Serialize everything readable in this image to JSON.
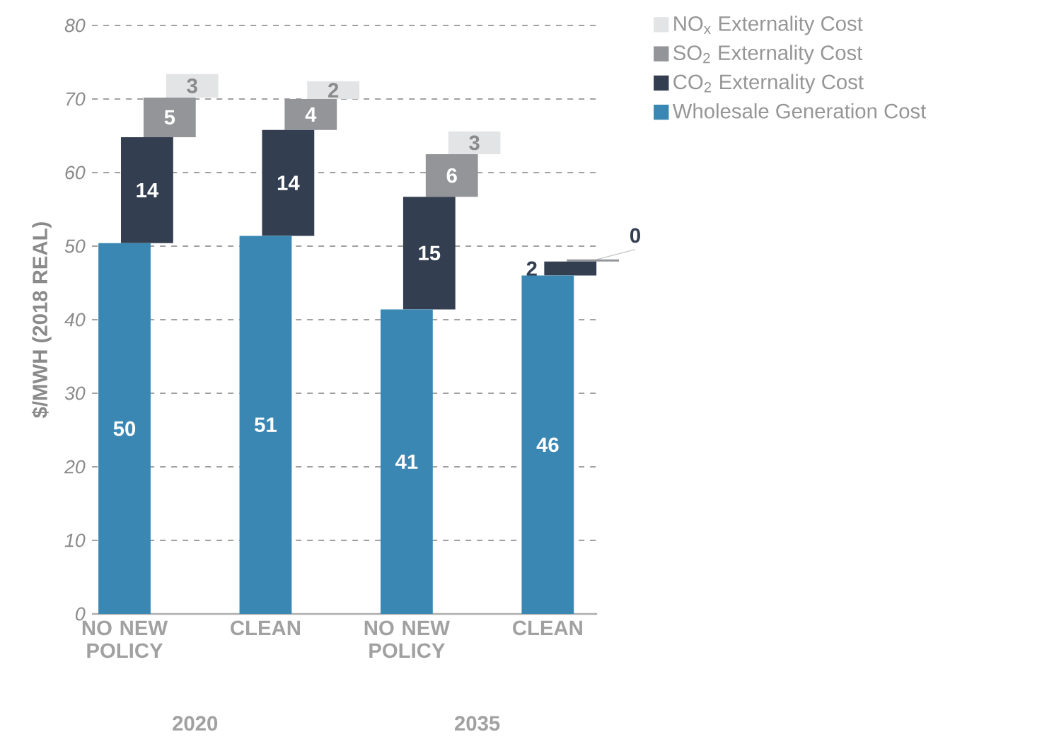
{
  "chart_data": {
    "type": "bar",
    "stacked": true,
    "categories": [
      "NO NEW POLICY",
      "CLEAN",
      "NO NEW POLICY",
      "CLEAN"
    ],
    "series": [
      {
        "name": "Wholesale Generation Cost",
        "color": "#3a87b4",
        "values": [
          50.4,
          51.4,
          41.4,
          46.0
        ],
        "value_labels": [
          "50",
          "51",
          "41",
          "46"
        ]
      },
      {
        "name": "CO$_{2}$ Externality Cost",
        "color": "#333f50",
        "values": [
          14.4,
          14.4,
          15.3,
          1.9
        ],
        "value_labels": [
          "14",
          "14",
          "15",
          "2"
        ]
      },
      {
        "name": "SO$_{2}$ Externality Cost",
        "color": "#939598",
        "values": [
          5.4,
          4.2,
          5.8,
          0.3
        ],
        "value_labels": [
          "5",
          "4",
          "6",
          "0"
        ]
      },
      {
        "name": "NO$_{x}$ Externality Cost",
        "color": "#e3e4e6",
        "values": [
          3.2,
          2.4,
          3.1,
          0
        ],
        "value_labels": [
          "3",
          "2",
          "3",
          null
        ]
      }
    ],
    "ylabel": "$/MWH (2018 REAL)",
    "ylim": [
      0,
      80
    ],
    "yticks": [
      0,
      10,
      20,
      30,
      40,
      50,
      60,
      70,
      80
    ],
    "grid": "y",
    "legend": "top right",
    "annotations": [
      "2020",
      "2035"
    ]
  }
}
